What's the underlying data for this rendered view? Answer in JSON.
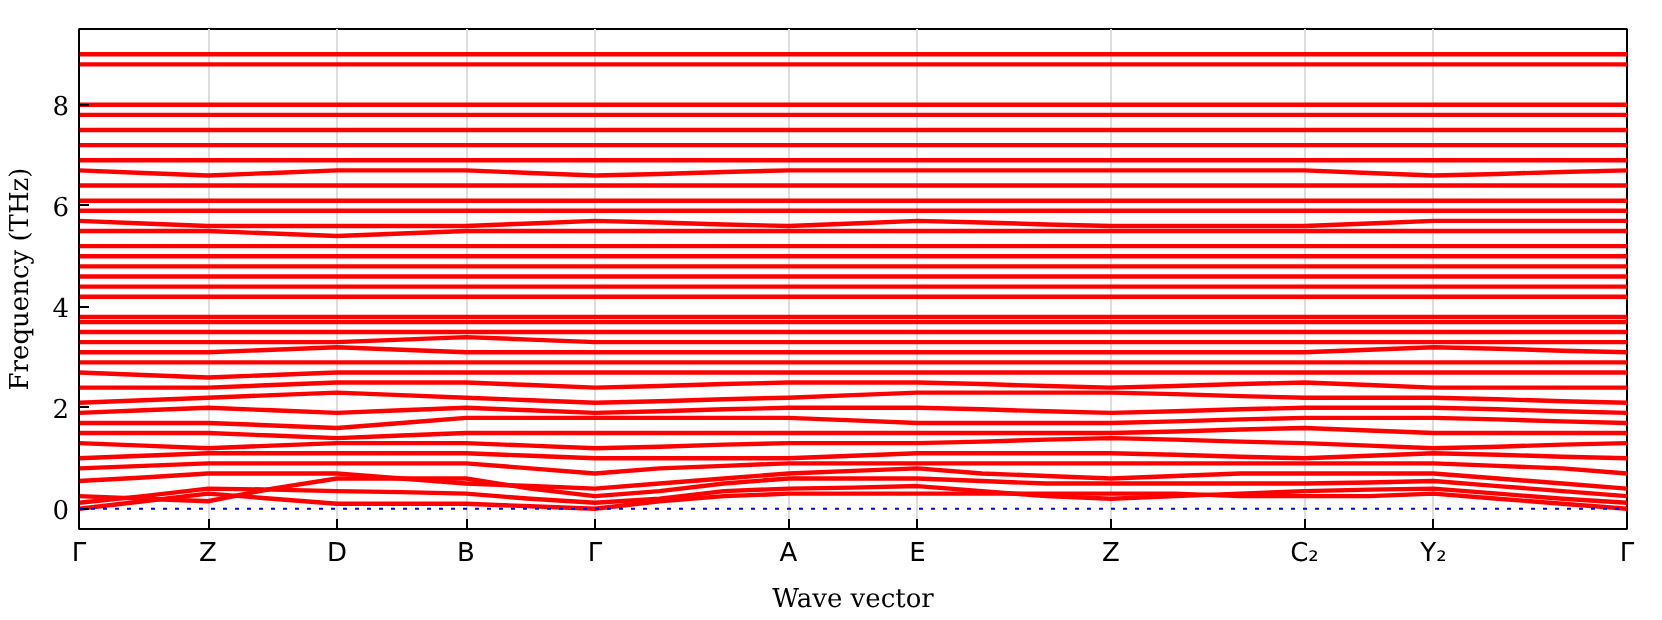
{
  "chart_data": {
    "type": "line",
    "xlabel": "Wave vector",
    "ylabel": "Frequency (THz)",
    "categories": [
      "Γ",
      null,
      "Z",
      null,
      "D",
      null,
      "B",
      null,
      "Γ",
      null,
      null,
      "A",
      null,
      "E",
      null,
      null,
      "Z",
      null,
      null,
      "C₂",
      null,
      "Y₂",
      null,
      null,
      "Γ"
    ],
    "ylim": [
      -0.4,
      9.5
    ],
    "yticks": [
      0,
      2,
      4,
      6,
      8
    ],
    "grid": "x",
    "marker": "none",
    "line_style": "solid",
    "ref_lines": [
      {
        "axis": "y",
        "value": 0,
        "color": "#0000ff",
        "line_style": "dotted"
      }
    ],
    "series": [
      {
        "color": "#ff0000",
        "values": [
          0,
          0.15,
          0.3,
          0.2,
          0.1,
          0.1,
          0.1,
          0.05,
          0,
          0.15,
          0.25,
          0.3,
          0.3,
          0.3,
          0.3,
          0.3,
          0.3,
          0.3,
          0.25,
          0.25,
          0.25,
          0.3,
          0.2,
          0.1,
          0
        ]
      },
      {
        "color": "#ff0000",
        "values": [
          0.12,
          0.25,
          0.4,
          0.38,
          0.35,
          0.33,
          0.3,
          0.2,
          0.12,
          0.2,
          0.35,
          0.4,
          0.42,
          0.45,
          0.35,
          0.25,
          0.2,
          0.25,
          0.3,
          0.35,
          0.38,
          0.4,
          0.3,
          0.2,
          0.12
        ]
      },
      {
        "color": "#ff0000",
        "values": [
          0.25,
          0.2,
          0.15,
          0.4,
          0.6,
          0.6,
          0.6,
          0.4,
          0.25,
          0.35,
          0.5,
          0.6,
          0.6,
          0.6,
          0.55,
          0.5,
          0.5,
          0.5,
          0.5,
          0.5,
          0.52,
          0.55,
          0.45,
          0.35,
          0.25
        ]
      },
      {
        "color": "#ff0000",
        "values": [
          0.55,
          0.62,
          0.7,
          0.7,
          0.7,
          0.6,
          0.5,
          0.45,
          0.4,
          0.5,
          0.6,
          0.7,
          0.75,
          0.8,
          0.7,
          0.65,
          0.6,
          0.65,
          0.7,
          0.7,
          0.7,
          0.7,
          0.6,
          0.5,
          0.4
        ]
      },
      {
        "color": "#ff0000",
        "values": [
          0.8,
          0.85,
          0.9,
          0.9,
          0.9,
          0.9,
          0.9,
          0.8,
          0.7,
          0.8,
          0.85,
          0.9,
          0.9,
          0.9,
          0.9,
          0.9,
          0.9,
          0.9,
          0.9,
          0.9,
          0.9,
          0.9,
          0.85,
          0.8,
          0.7
        ]
      },
      {
        "color": "#ff0000",
        "values": [
          1.0,
          1.05,
          1.1,
          1.1,
          1.1,
          1.1,
          1.1,
          1.05,
          1.0,
          1.0,
          1.0,
          1.0,
          1.05,
          1.1,
          1.1,
          1.1,
          1.1,
          1.07,
          1.03,
          1.0,
          1.05,
          1.1,
          1.07,
          1.03,
          1.0
        ]
      },
      {
        "color": "#ff0000",
        "values": [
          1.3,
          1.25,
          1.2,
          1.25,
          1.3,
          1.3,
          1.3,
          1.25,
          1.2,
          1.23,
          1.27,
          1.3,
          1.3,
          1.3,
          1.33,
          1.37,
          1.4,
          1.37,
          1.33,
          1.3,
          1.25,
          1.2,
          1.23,
          1.27,
          1.3
        ]
      },
      {
        "color": "#ff0000",
        "values": [
          1.5,
          1.5,
          1.5,
          1.45,
          1.4,
          1.45,
          1.5,
          1.5,
          1.5,
          1.5,
          1.5,
          1.5,
          1.5,
          1.5,
          1.5,
          1.5,
          1.5,
          1.53,
          1.57,
          1.6,
          1.55,
          1.5,
          1.5,
          1.5,
          1.5
        ]
      },
      {
        "color": "#ff0000",
        "values": [
          1.7,
          1.7,
          1.7,
          1.65,
          1.6,
          1.7,
          1.8,
          1.8,
          1.8,
          1.8,
          1.8,
          1.8,
          1.75,
          1.7,
          1.7,
          1.7,
          1.7,
          1.73,
          1.77,
          1.8,
          1.8,
          1.8,
          1.77,
          1.73,
          1.7
        ]
      },
      {
        "color": "#ff0000",
        "values": [
          1.9,
          1.95,
          2.0,
          1.95,
          1.9,
          1.95,
          2.0,
          1.95,
          1.9,
          1.93,
          1.97,
          2.0,
          2.0,
          2.0,
          1.97,
          1.93,
          1.9,
          1.93,
          1.97,
          2.0,
          2.0,
          2.0,
          1.97,
          1.93,
          1.9
        ]
      },
      {
        "color": "#ff0000",
        "values": [
          2.1,
          2.15,
          2.2,
          2.25,
          2.3,
          2.25,
          2.2,
          2.15,
          2.1,
          2.13,
          2.17,
          2.2,
          2.25,
          2.3,
          2.3,
          2.3,
          2.3,
          2.27,
          2.23,
          2.2,
          2.2,
          2.2,
          2.17,
          2.13,
          2.1
        ]
      },
      {
        "color": "#ff0000",
        "values": [
          2.4,
          2.4,
          2.4,
          2.45,
          2.5,
          2.5,
          2.5,
          2.45,
          2.4,
          2.43,
          2.47,
          2.5,
          2.5,
          2.5,
          2.47,
          2.43,
          2.4,
          2.43,
          2.47,
          2.5,
          2.45,
          2.4,
          2.4,
          2.4,
          2.4
        ]
      },
      {
        "color": "#ff0000",
        "values": [
          2.7,
          2.65,
          2.6,
          2.65,
          2.7,
          2.7,
          2.7,
          2.7,
          2.7,
          2.7,
          2.7,
          2.7,
          2.7,
          2.7,
          2.7,
          2.7,
          2.7,
          2.7,
          2.7,
          2.7,
          2.7,
          2.7,
          2.7,
          2.7,
          2.7
        ]
      },
      {
        "color": "#ff0000",
        "values": [
          2.9,
          2.9,
          2.9,
          2.9,
          2.9,
          2.9,
          2.9,
          2.9,
          2.9,
          2.9,
          2.9,
          2.9,
          2.9,
          2.9,
          2.9,
          2.9,
          2.9,
          2.9,
          2.9,
          2.9,
          2.9,
          2.9,
          2.9,
          2.9,
          2.9
        ]
      },
      {
        "color": "#ff0000",
        "values": [
          3.1,
          3.1,
          3.1,
          3.15,
          3.2,
          3.15,
          3.1,
          3.1,
          3.1,
          3.1,
          3.1,
          3.1,
          3.1,
          3.1,
          3.1,
          3.1,
          3.1,
          3.1,
          3.1,
          3.1,
          3.15,
          3.2,
          3.17,
          3.13,
          3.1
        ]
      },
      {
        "color": "#ff0000",
        "values": [
          3.3,
          3.3,
          3.3,
          3.3,
          3.3,
          3.35,
          3.4,
          3.35,
          3.3,
          3.3,
          3.3,
          3.3,
          3.3,
          3.3,
          3.3,
          3.3,
          3.3,
          3.3,
          3.3,
          3.3,
          3.3,
          3.3,
          3.3,
          3.3,
          3.3
        ]
      },
      {
        "color": "#ff0000",
        "values": [
          3.5,
          3.5,
          3.5,
          3.5,
          3.5,
          3.5,
          3.5,
          3.5,
          3.5,
          3.5,
          3.5,
          3.5,
          3.5,
          3.5,
          3.5,
          3.5,
          3.5,
          3.5,
          3.5,
          3.5,
          3.5,
          3.5,
          3.5,
          3.5,
          3.5
        ]
      },
      {
        "color": "#ff0000",
        "values": [
          3.7,
          3.7,
          3.7,
          3.7,
          3.7,
          3.7,
          3.7,
          3.7,
          3.7,
          3.7,
          3.7,
          3.7,
          3.7,
          3.7,
          3.7,
          3.7,
          3.7,
          3.7,
          3.7,
          3.7,
          3.7,
          3.7,
          3.7,
          3.7,
          3.7
        ]
      },
      {
        "color": "#ff0000",
        "values": [
          3.8,
          3.8,
          3.8,
          3.8,
          3.8,
          3.8,
          3.8,
          3.8,
          3.8,
          3.8,
          3.8,
          3.8,
          3.8,
          3.8,
          3.8,
          3.8,
          3.8,
          3.8,
          3.8,
          3.8,
          3.8,
          3.8,
          3.8,
          3.8,
          3.8
        ]
      },
      {
        "color": "#ff0000",
        "values": [
          4.2,
          4.2,
          4.2,
          4.2,
          4.2,
          4.2,
          4.2,
          4.2,
          4.2,
          4.2,
          4.2,
          4.2,
          4.2,
          4.2,
          4.2,
          4.2,
          4.2,
          4.2,
          4.2,
          4.2,
          4.2,
          4.2,
          4.2,
          4.2,
          4.2
        ]
      },
      {
        "color": "#ff0000",
        "values": [
          4.4,
          4.4,
          4.4,
          4.4,
          4.4,
          4.4,
          4.4,
          4.4,
          4.4,
          4.4,
          4.4,
          4.4,
          4.4,
          4.4,
          4.4,
          4.4,
          4.4,
          4.4,
          4.4,
          4.4,
          4.4,
          4.4,
          4.4,
          4.4,
          4.4
        ]
      },
      {
        "color": "#ff0000",
        "values": [
          4.6,
          4.6,
          4.6,
          4.6,
          4.6,
          4.6,
          4.6,
          4.6,
          4.6,
          4.6,
          4.6,
          4.6,
          4.6,
          4.6,
          4.6,
          4.6,
          4.6,
          4.6,
          4.6,
          4.6,
          4.6,
          4.6,
          4.6,
          4.6,
          4.6
        ]
      },
      {
        "color": "#ff0000",
        "values": [
          4.8,
          4.8,
          4.8,
          4.8,
          4.8,
          4.8,
          4.8,
          4.8,
          4.8,
          4.8,
          4.8,
          4.8,
          4.8,
          4.8,
          4.8,
          4.8,
          4.8,
          4.8,
          4.8,
          4.8,
          4.8,
          4.8,
          4.8,
          4.8,
          4.8
        ]
      },
      {
        "color": "#ff0000",
        "values": [
          5.0,
          5.0,
          5.0,
          5.0,
          5.0,
          5.0,
          5.0,
          5.0,
          5.0,
          5.0,
          5.0,
          5.0,
          5.0,
          5.0,
          5.0,
          5.0,
          5.0,
          5.0,
          5.0,
          5.0,
          5.0,
          5.0,
          5.0,
          5.0,
          5.0
        ]
      },
      {
        "color": "#ff0000",
        "values": [
          5.2,
          5.2,
          5.2,
          5.2,
          5.2,
          5.2,
          5.2,
          5.2,
          5.2,
          5.2,
          5.2,
          5.2,
          5.2,
          5.2,
          5.2,
          5.2,
          5.2,
          5.2,
          5.2,
          5.2,
          5.2,
          5.2,
          5.2,
          5.2,
          5.2
        ]
      },
      {
        "color": "#ff0000",
        "values": [
          5.5,
          5.5,
          5.5,
          5.45,
          5.4,
          5.45,
          5.5,
          5.5,
          5.5,
          5.5,
          5.5,
          5.5,
          5.5,
          5.5,
          5.5,
          5.5,
          5.5,
          5.5,
          5.5,
          5.5,
          5.5,
          5.5,
          5.5,
          5.5,
          5.5
        ]
      },
      {
        "color": "#ff0000",
        "values": [
          5.7,
          5.65,
          5.6,
          5.6,
          5.6,
          5.6,
          5.6,
          5.65,
          5.7,
          5.67,
          5.63,
          5.6,
          5.65,
          5.7,
          5.67,
          5.63,
          5.6,
          5.6,
          5.6,
          5.6,
          5.65,
          5.7,
          5.7,
          5.7,
          5.7
        ]
      },
      {
        "color": "#ff0000",
        "values": [
          5.9,
          5.9,
          5.9,
          5.9,
          5.9,
          5.9,
          5.9,
          5.9,
          5.9,
          5.9,
          5.9,
          5.9,
          5.9,
          5.9,
          5.9,
          5.9,
          5.9,
          5.9,
          5.9,
          5.9,
          5.9,
          5.9,
          5.9,
          5.9,
          5.9
        ]
      },
      {
        "color": "#ff0000",
        "values": [
          6.1,
          6.1,
          6.1,
          6.1,
          6.1,
          6.1,
          6.1,
          6.1,
          6.1,
          6.1,
          6.1,
          6.1,
          6.1,
          6.1,
          6.1,
          6.1,
          6.1,
          6.1,
          6.1,
          6.1,
          6.1,
          6.1,
          6.1,
          6.1,
          6.1
        ]
      },
      {
        "color": "#ff0000",
        "values": [
          6.4,
          6.4,
          6.4,
          6.4,
          6.4,
          6.4,
          6.4,
          6.4,
          6.4,
          6.4,
          6.4,
          6.4,
          6.4,
          6.4,
          6.4,
          6.4,
          6.4,
          6.4,
          6.4,
          6.4,
          6.4,
          6.4,
          6.4,
          6.4,
          6.4
        ]
      },
      {
        "color": "#ff0000",
        "values": [
          6.7,
          6.65,
          6.6,
          6.65,
          6.7,
          6.7,
          6.7,
          6.65,
          6.6,
          6.63,
          6.67,
          6.7,
          6.7,
          6.7,
          6.7,
          6.7,
          6.7,
          6.7,
          6.7,
          6.7,
          6.65,
          6.6,
          6.63,
          6.67,
          6.7
        ]
      },
      {
        "color": "#ff0000",
        "values": [
          6.9,
          6.9,
          6.9,
          6.9,
          6.9,
          6.9,
          6.9,
          6.9,
          6.9,
          6.9,
          6.9,
          6.9,
          6.9,
          6.9,
          6.9,
          6.9,
          6.9,
          6.9,
          6.9,
          6.9,
          6.9,
          6.9,
          6.9,
          6.9,
          6.9
        ]
      },
      {
        "color": "#ff0000",
        "values": [
          7.2,
          7.2,
          7.2,
          7.2,
          7.2,
          7.2,
          7.2,
          7.2,
          7.2,
          7.2,
          7.2,
          7.2,
          7.2,
          7.2,
          7.2,
          7.2,
          7.2,
          7.2,
          7.2,
          7.2,
          7.2,
          7.2,
          7.2,
          7.2,
          7.2
        ]
      },
      {
        "color": "#ff0000",
        "values": [
          7.5,
          7.5,
          7.5,
          7.5,
          7.5,
          7.5,
          7.5,
          7.5,
          7.5,
          7.5,
          7.5,
          7.5,
          7.5,
          7.5,
          7.5,
          7.5,
          7.5,
          7.5,
          7.5,
          7.5,
          7.5,
          7.5,
          7.5,
          7.5,
          7.5
        ]
      },
      {
        "color": "#ff0000",
        "values": [
          7.8,
          7.8,
          7.8,
          7.8,
          7.8,
          7.8,
          7.8,
          7.8,
          7.8,
          7.8,
          7.8,
          7.8,
          7.8,
          7.8,
          7.8,
          7.8,
          7.8,
          7.8,
          7.8,
          7.8,
          7.8,
          7.8,
          7.8,
          7.8,
          7.8
        ]
      },
      {
        "color": "#ff0000",
        "values": [
          8.0,
          8.0,
          8.0,
          8.0,
          8.0,
          8.0,
          8.0,
          8.0,
          8.0,
          8.0,
          8.0,
          8.0,
          8.0,
          8.0,
          8.0,
          8.0,
          8.0,
          8.0,
          8.0,
          8.0,
          8.0,
          8.0,
          8.0,
          8.0,
          8.0
        ]
      },
      {
        "color": "#ff0000",
        "values": [
          8.8,
          8.8,
          8.8,
          8.8,
          8.8,
          8.8,
          8.8,
          8.8,
          8.8,
          8.8,
          8.8,
          8.8,
          8.8,
          8.8,
          8.8,
          8.8,
          8.8,
          8.8,
          8.8,
          8.8,
          8.8,
          8.8,
          8.8,
          8.8,
          8.8
        ]
      },
      {
        "color": "#ff0000",
        "values": [
          9.0,
          9.0,
          9.0,
          9.0,
          9.0,
          9.0,
          9.0,
          9.0,
          9.0,
          9.0,
          9.0,
          9.0,
          9.0,
          9.0,
          9.0,
          9.0,
          9.0,
          9.0,
          9.0,
          9.0,
          9.0,
          9.0,
          9.0,
          9.0,
          9.0
        ]
      }
    ]
  }
}
